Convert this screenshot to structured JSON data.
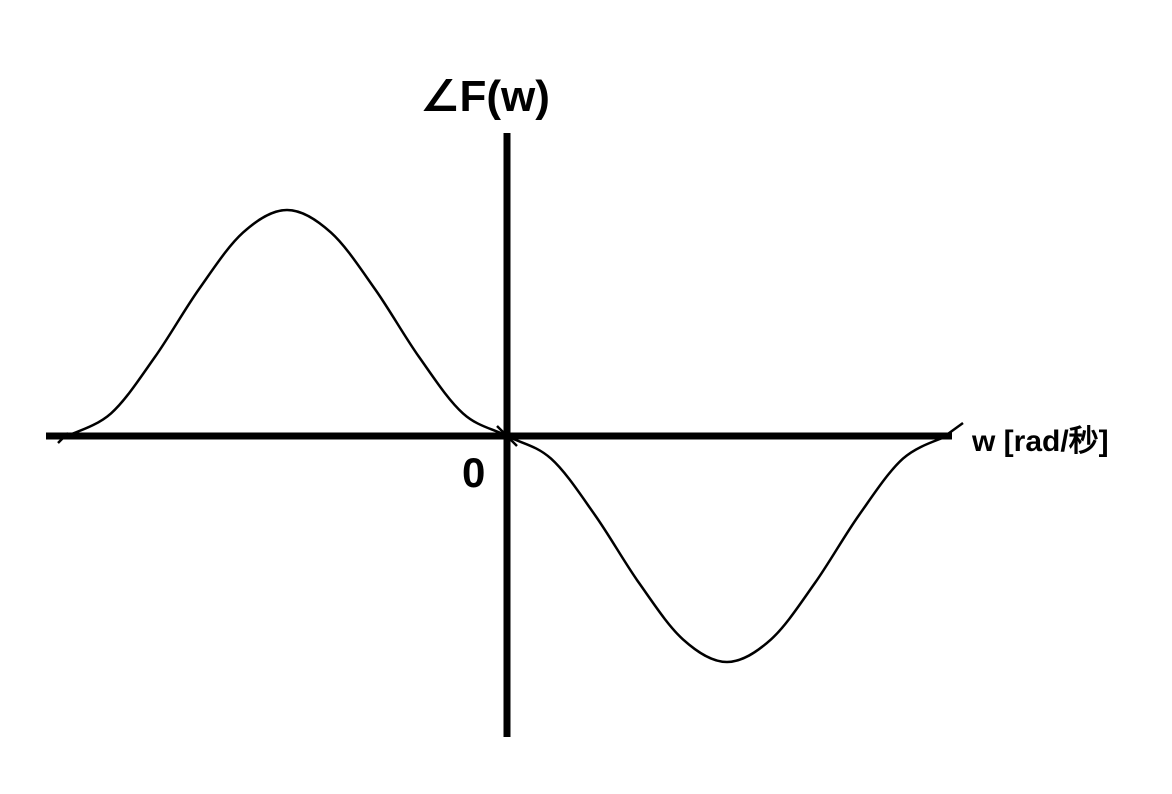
{
  "chart_data": {
    "type": "line",
    "title": "",
    "ylabel": "∠F(w)",
    "xlabel": "w [rad/秒]",
    "origin_label": "0",
    "xlim": [
      -1,
      1
    ],
    "ylim": [
      -1,
      1
    ],
    "grid": false,
    "legend": "none",
    "series": [
      {
        "x": [
          -1.0,
          -0.9,
          -0.8,
          -0.7,
          -0.6,
          -0.5,
          -0.4,
          -0.3,
          -0.2,
          -0.1,
          0.0,
          0.1,
          0.2,
          0.3,
          0.4,
          0.5,
          0.6,
          0.7,
          0.8,
          0.9,
          1.0
        ],
        "y": [
          0.0,
          0.1,
          0.35,
          0.65,
          0.9,
          1.0,
          0.9,
          0.65,
          0.35,
          0.1,
          0.0,
          -0.1,
          -0.35,
          -0.65,
          -0.9,
          -1.0,
          -0.9,
          -0.65,
          -0.35,
          -0.1,
          0.0
        ]
      }
    ],
    "colors": {
      "axis": "#000000",
      "line": "#000000"
    }
  }
}
